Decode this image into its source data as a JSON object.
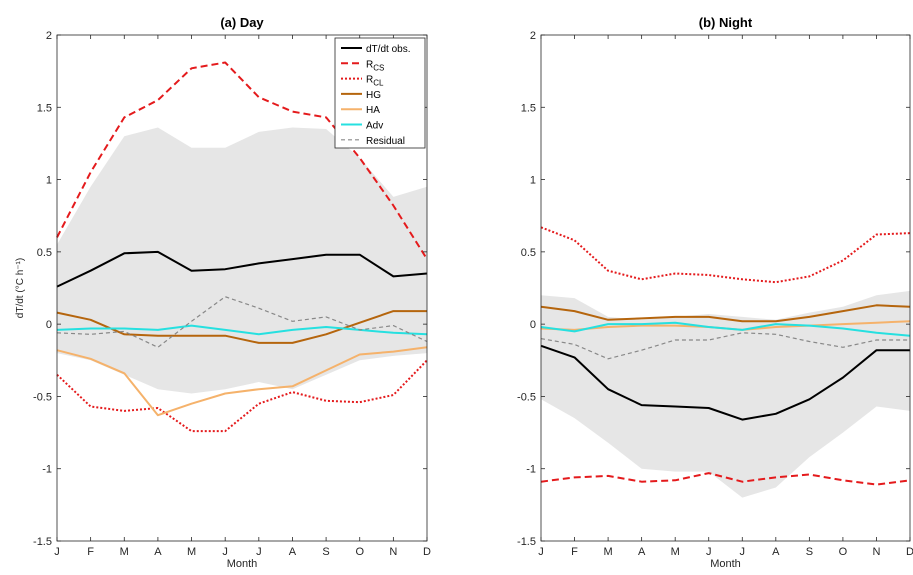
{
  "figure": {
    "ylabel": "dT/dt (°C h⁻¹)"
  },
  "legend": {
    "entries": [
      {
        "label": "dT/dt obs.",
        "main": "dT/dt obs.",
        "sub": "",
        "color": "#000000",
        "dash": "",
        "width": 2
      },
      {
        "label": "R_CS",
        "main": "R",
        "sub": "CS",
        "color": "#e41a1c",
        "dash": "7,4",
        "width": 2
      },
      {
        "label": "R_CL",
        "main": "R",
        "sub": "CL",
        "color": "#e41a1c",
        "dash": "2,2",
        "width": 2
      },
      {
        "label": "HG",
        "main": "HG",
        "sub": "",
        "color": "#b5650d",
        "dash": "",
        "width": 2
      },
      {
        "label": "HA",
        "main": "HA",
        "sub": "",
        "color": "#f5b26b",
        "dash": "",
        "width": 2
      },
      {
        "label": "Adv",
        "main": "Adv",
        "sub": "",
        "color": "#26e0e0",
        "dash": "",
        "width": 2
      },
      {
        "label": "Residual",
        "main": "Residual",
        "sub": "",
        "color": "#888888",
        "dash": "4,3",
        "width": 1.2
      }
    ]
  },
  "chart_data": [
    {
      "type": "line",
      "title": "(a) Day",
      "xlabel": "Month",
      "ylabel": "dT/dt (°C h⁻¹)",
      "x": [
        "J",
        "F",
        "M",
        "A",
        "M",
        "J",
        "J",
        "A",
        "S",
        "O",
        "N",
        "D"
      ],
      "ylim": [
        -1.5,
        2
      ],
      "yticks": [
        -1.5,
        -1,
        -0.5,
        0,
        0.5,
        1,
        1.5,
        2
      ],
      "ytick_labels": [
        "-1.5",
        "-1",
        "-0.5",
        "0",
        "0.5",
        "1",
        "1.5",
        "2"
      ],
      "grid": false,
      "legend_position": "top-right",
      "band": {
        "color": "#e6e6e6",
        "upper": [
          0.55,
          0.95,
          1.3,
          1.36,
          1.22,
          1.22,
          1.33,
          1.36,
          1.35,
          1.15,
          0.88,
          0.95
        ],
        "lower": [
          -0.2,
          -0.25,
          -0.35,
          -0.45,
          -0.48,
          -0.45,
          -0.4,
          -0.45,
          -0.35,
          -0.25,
          -0.22,
          -0.2
        ]
      },
      "series": [
        {
          "name": "dT/dt obs.",
          "values": [
            0.26,
            0.37,
            0.49,
            0.5,
            0.37,
            0.38,
            0.42,
            0.45,
            0.48,
            0.48,
            0.33,
            0.35
          ]
        },
        {
          "name": "R_CS",
          "values": [
            0.6,
            1.05,
            1.43,
            1.55,
            1.77,
            1.81,
            1.57,
            1.47,
            1.43,
            1.15,
            0.82,
            0.45
          ]
        },
        {
          "name": "R_CL",
          "values": [
            -0.35,
            -0.57,
            -0.6,
            -0.58,
            -0.74,
            -0.74,
            -0.55,
            -0.47,
            -0.53,
            -0.54,
            -0.49,
            -0.25
          ]
        },
        {
          "name": "HG",
          "values": [
            0.08,
            0.03,
            -0.07,
            -0.08,
            -0.08,
            -0.08,
            -0.13,
            -0.13,
            -0.07,
            0.01,
            0.09,
            0.09
          ]
        },
        {
          "name": "HA",
          "values": [
            -0.18,
            -0.24,
            -0.34,
            -0.63,
            -0.55,
            -0.48,
            -0.45,
            -0.43,
            -0.32,
            -0.21,
            -0.19,
            -0.16
          ]
        },
        {
          "name": "Adv",
          "values": [
            -0.04,
            -0.03,
            -0.03,
            -0.04,
            -0.01,
            -0.04,
            -0.07,
            -0.04,
            -0.02,
            -0.04,
            -0.06,
            -0.07
          ]
        },
        {
          "name": "Residual",
          "values": [
            -0.06,
            -0.07,
            -0.05,
            -0.16,
            0.02,
            0.19,
            0.11,
            0.02,
            0.05,
            -0.04,
            -0.01,
            -0.12
          ]
        }
      ]
    },
    {
      "type": "line",
      "title": "(b) Night",
      "xlabel": "Month",
      "ylabel": "",
      "x": [
        "J",
        "F",
        "M",
        "A",
        "M",
        "J",
        "J",
        "A",
        "S",
        "O",
        "N",
        "D"
      ],
      "ylim": [
        -1.5,
        2
      ],
      "yticks": [
        -1.5,
        -1,
        -0.5,
        0,
        0.5,
        1,
        1.5,
        2
      ],
      "ytick_labels": [
        "-1.5",
        "-1",
        "-0.5",
        "0",
        "0.5",
        "1",
        "1.5",
        "2"
      ],
      "grid": false,
      "band": {
        "color": "#e6e6e6",
        "upper": [
          0.2,
          0.18,
          0.05,
          0.03,
          0.05,
          0.07,
          0.05,
          0.03,
          0.08,
          0.12,
          0.2,
          0.23
        ],
        "lower": [
          -0.52,
          -0.65,
          -0.82,
          -1.0,
          -1.02,
          -1.02,
          -1.2,
          -1.13,
          -0.92,
          -0.75,
          -0.57,
          -0.6
        ]
      },
      "series": [
        {
          "name": "dT/dt obs.",
          "values": [
            -0.15,
            -0.23,
            -0.45,
            -0.56,
            -0.57,
            -0.58,
            -0.66,
            -0.62,
            -0.52,
            -0.37,
            -0.18,
            -0.18
          ]
        },
        {
          "name": "R_CS",
          "values": [
            -1.09,
            -1.06,
            -1.05,
            -1.09,
            -1.08,
            -1.03,
            -1.09,
            -1.06,
            -1.04,
            -1.08,
            -1.11,
            -1.08
          ]
        },
        {
          "name": "R_CL",
          "values": [
            0.67,
            0.58,
            0.37,
            0.31,
            0.35,
            0.34,
            0.31,
            0.29,
            0.33,
            0.44,
            0.62,
            0.63
          ]
        },
        {
          "name": "HG",
          "values": [
            0.12,
            0.09,
            0.03,
            0.04,
            0.05,
            0.05,
            0.02,
            0.02,
            0.05,
            0.09,
            0.13,
            0.12
          ]
        },
        {
          "name": "HA",
          "values": [
            -0.03,
            -0.04,
            -0.02,
            -0.01,
            -0.01,
            -0.02,
            -0.04,
            -0.02,
            -0.01,
            0.0,
            0.01,
            0.02
          ]
        },
        {
          "name": "Adv",
          "values": [
            -0.02,
            -0.05,
            0.0,
            0.0,
            0.01,
            -0.02,
            -0.04,
            0.0,
            -0.01,
            -0.03,
            -0.06,
            -0.08
          ]
        },
        {
          "name": "Residual",
          "values": [
            -0.1,
            -0.14,
            -0.24,
            -0.18,
            -0.11,
            -0.11,
            -0.06,
            -0.07,
            -0.12,
            -0.16,
            -0.11,
            -0.11
          ]
        }
      ]
    }
  ]
}
